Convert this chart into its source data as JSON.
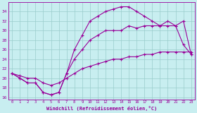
{
  "xlabel": "Windchill (Refroidissement éolien,°C)",
  "hours": [
    0,
    1,
    2,
    3,
    4,
    5,
    6,
    7,
    8,
    9,
    10,
    11,
    12,
    13,
    14,
    15,
    16,
    17,
    18,
    19,
    20,
    21,
    22,
    23
  ],
  "line1": [
    21,
    20,
    19,
    19,
    17,
    16.5,
    17,
    21,
    26,
    29,
    32,
    33,
    34,
    34.5,
    35,
    35,
    34,
    33,
    32,
    31,
    32,
    31,
    32,
    25
  ],
  "line2": [
    21,
    20,
    19,
    19,
    17,
    16.5,
    17,
    21,
    24,
    26,
    28,
    29,
    30,
    30,
    30,
    31,
    30.5,
    31,
    31,
    31,
    31,
    31,
    27,
    25
  ],
  "line3": [
    21,
    20.5,
    20,
    20,
    19,
    18.5,
    19,
    20,
    21,
    22,
    22.5,
    23,
    23.5,
    24,
    24,
    24.5,
    24.5,
    25,
    25,
    25.5,
    25.5,
    25.5,
    25.5,
    25.5
  ],
  "ylim": [
    15.5,
    36
  ],
  "xlim": [
    -0.5,
    23.5
  ],
  "yticks": [
    16,
    18,
    20,
    22,
    24,
    26,
    28,
    30,
    32,
    34
  ],
  "xticks": [
    0,
    1,
    2,
    3,
    4,
    5,
    6,
    7,
    8,
    9,
    10,
    11,
    12,
    13,
    14,
    15,
    16,
    17,
    18,
    19,
    20,
    21,
    22,
    23
  ],
  "line_color": "#990099",
  "bg_color": "#c8eef0",
  "grid_color": "#99cccc",
  "marker": "+",
  "linewidth": 0.8,
  "markersize": 3,
  "markeredgewidth": 0.8
}
